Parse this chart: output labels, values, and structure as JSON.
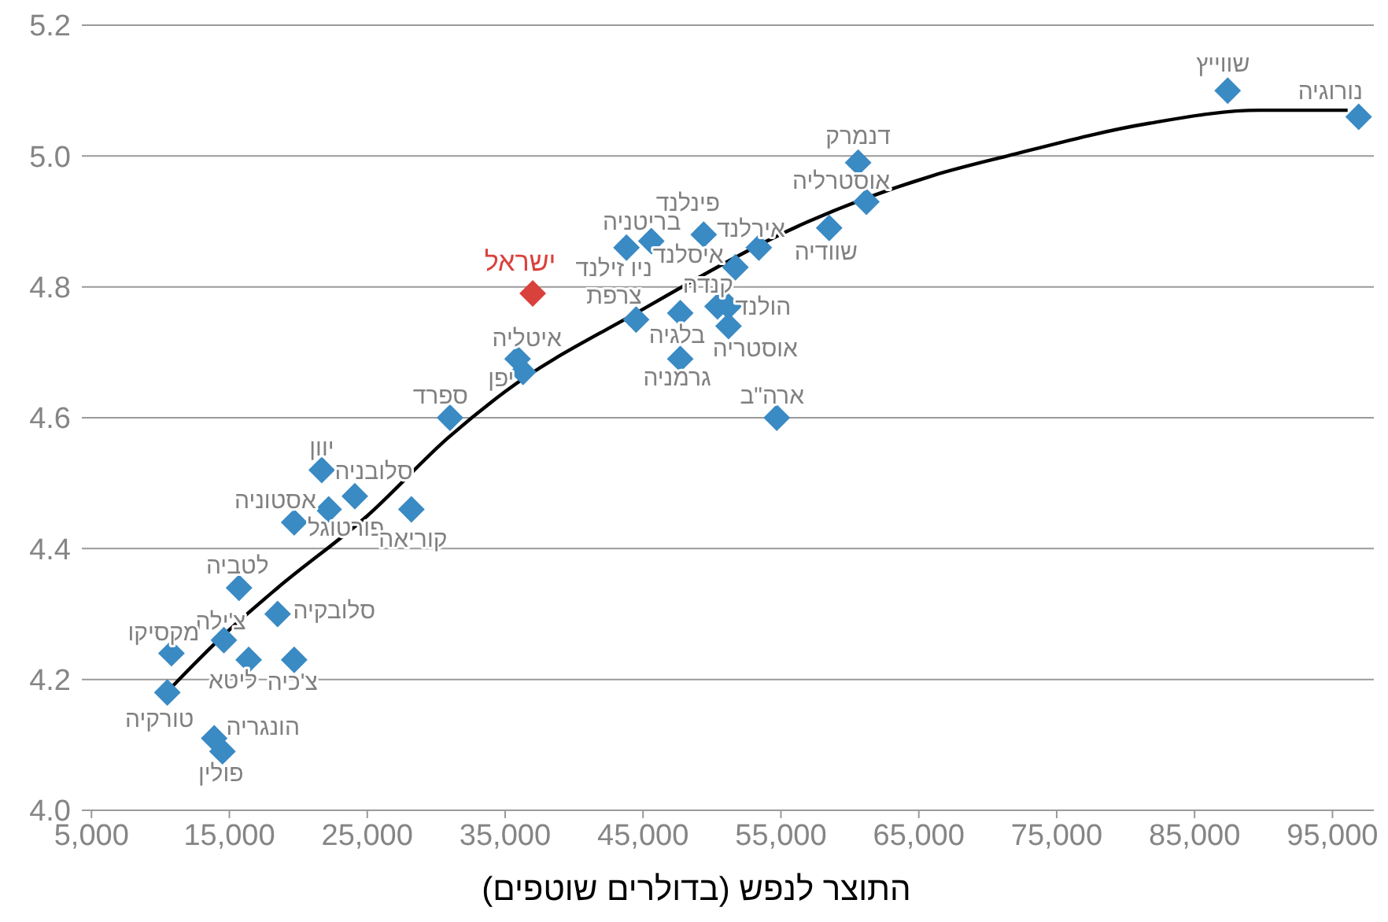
{
  "chart_data": {
    "type": "scatter",
    "xlabel": "התוצר לנפש (בדולרים שוטפים)",
    "xlim": [
      4300,
      98000
    ],
    "ylim": [
      4.0,
      5.2
    ],
    "xticks": [
      {
        "value": 5000,
        "label": "5,000"
      },
      {
        "value": 15000,
        "label": "15,000"
      },
      {
        "value": 25000,
        "label": "25,000"
      },
      {
        "value": 35000,
        "label": "35,000"
      },
      {
        "value": 45000,
        "label": "45,000"
      },
      {
        "value": 55000,
        "label": "55,000"
      },
      {
        "value": 65000,
        "label": "65,000"
      },
      {
        "value": 75000,
        "label": "75,000"
      },
      {
        "value": 85000,
        "label": "85,000"
      },
      {
        "value": 95000,
        "label": "95,000"
      }
    ],
    "yticks": [
      {
        "value": 4.0,
        "label": "4.0"
      },
      {
        "value": 4.2,
        "label": "4.2"
      },
      {
        "value": 4.4,
        "label": "4.4"
      },
      {
        "value": 4.6,
        "label": "4.6"
      },
      {
        "value": 4.8,
        "label": "4.8"
      },
      {
        "value": 5.0,
        "label": "5.0"
      },
      {
        "value": 5.2,
        "label": "5.2"
      }
    ],
    "grid": "y",
    "marker": "diamond",
    "legend": false,
    "series": [
      {
        "type": "scatter",
        "color": "#3a8ac4",
        "x": [
          96900,
          87400,
          60600,
          61200,
          58500,
          53400,
          51700,
          49400,
          45600,
          43800,
          50400,
          51200,
          51200,
          47700,
          47700,
          44500,
          54700,
          35900,
          36300,
          31000,
          21700,
          24100,
          22200,
          19700,
          28200,
          15700,
          18500,
          14600,
          10800,
          16400,
          19700,
          10500,
          13900,
          14500
        ],
        "values": [
          5.06,
          5.1,
          4.99,
          4.93,
          4.89,
          4.86,
          4.83,
          4.88,
          4.87,
          4.86,
          4.77,
          4.77,
          4.74,
          4.76,
          4.69,
          4.75,
          4.6,
          4.69,
          4.67,
          4.6,
          4.52,
          4.48,
          4.46,
          4.44,
          4.46,
          4.34,
          4.3,
          4.26,
          4.24,
          4.23,
          4.23,
          4.18,
          4.11,
          4.09
        ]
      },
      {
        "type": "scatter",
        "name": "ישראל",
        "color": "#d9413c",
        "x": [
          37000
        ],
        "values": [
          4.79
        ]
      },
      {
        "type": "line",
        "color": "#000000",
        "marker": "none",
        "x": [
          10900,
          14700,
          18500,
          25000,
          30900,
          35000,
          44500,
          57000,
          66000,
          71400,
          81700,
          89700,
          96100
        ],
        "values": [
          4.19,
          4.27,
          4.34,
          4.45,
          4.57,
          4.64,
          4.76,
          4.9,
          4.97,
          5.0,
          5.05,
          5.07,
          5.07
        ]
      }
    ],
    "annotations": [
      {
        "text": "נורוגיה",
        "x": 96900,
        "y": 5.06
      },
      {
        "text": "שווייץ",
        "x": 87400,
        "y": 5.1
      },
      {
        "text": "דנמרק",
        "x": 60600,
        "y": 4.99
      },
      {
        "text": "אוסטרליה",
        "x": 61200,
        "y": 4.93
      },
      {
        "text": "שוודיה",
        "x": 58500,
        "y": 4.89
      },
      {
        "text": "אירלנד",
        "x": 53400,
        "y": 4.86
      },
      {
        "text": "איסלנד",
        "x": 51700,
        "y": 4.83
      },
      {
        "text": "פינלנד",
        "x": 49400,
        "y": 4.88
      },
      {
        "text": "בריטניה",
        "x": 45600,
        "y": 4.87
      },
      {
        "text": "ניו זילנד",
        "x": 43800,
        "y": 4.86
      },
      {
        "text": "קנדה",
        "x": 50400,
        "y": 4.77
      },
      {
        "text": "הולנד",
        "x": 51200,
        "y": 4.77
      },
      {
        "text": "אוסטריה",
        "x": 51200,
        "y": 4.74
      },
      {
        "text": "בלגיה",
        "x": 47700,
        "y": 4.76
      },
      {
        "text": "גרמניה",
        "x": 47700,
        "y": 4.69
      },
      {
        "text": "צרפת",
        "x": 44500,
        "y": 4.75
      },
      {
        "text": "ארה\"ב",
        "x": 54700,
        "y": 4.6
      },
      {
        "text": "איטליה",
        "x": 35900,
        "y": 4.69
      },
      {
        "text": "יפן",
        "x": 36300,
        "y": 4.67
      },
      {
        "text": "ספרד",
        "x": 31000,
        "y": 4.6
      },
      {
        "text": "יוון",
        "x": 21700,
        "y": 4.52
      },
      {
        "text": "סלובניה",
        "x": 24100,
        "y": 4.48
      },
      {
        "text": "פורטוגל",
        "x": 22200,
        "y": 4.46
      },
      {
        "text": "אסטוניה",
        "x": 19700,
        "y": 4.44
      },
      {
        "text": "קוריאה",
        "x": 28200,
        "y": 4.46
      },
      {
        "text": "לטביה",
        "x": 15700,
        "y": 4.34
      },
      {
        "text": "סלובקיה",
        "x": 18500,
        "y": 4.3
      },
      {
        "text": "צ'ילה",
        "x": 14600,
        "y": 4.26
      },
      {
        "text": "מקסיקו",
        "x": 10800,
        "y": 4.24
      },
      {
        "text": "ליטא",
        "x": 16400,
        "y": 4.23
      },
      {
        "text": "צ'כיה",
        "x": 19700,
        "y": 4.23
      },
      {
        "text": "טורקיה",
        "x": 10500,
        "y": 4.18
      },
      {
        "text": "הונגריה",
        "x": 13900,
        "y": 4.11
      },
      {
        "text": "פולין",
        "x": 14500,
        "y": 4.09
      }
    ]
  }
}
